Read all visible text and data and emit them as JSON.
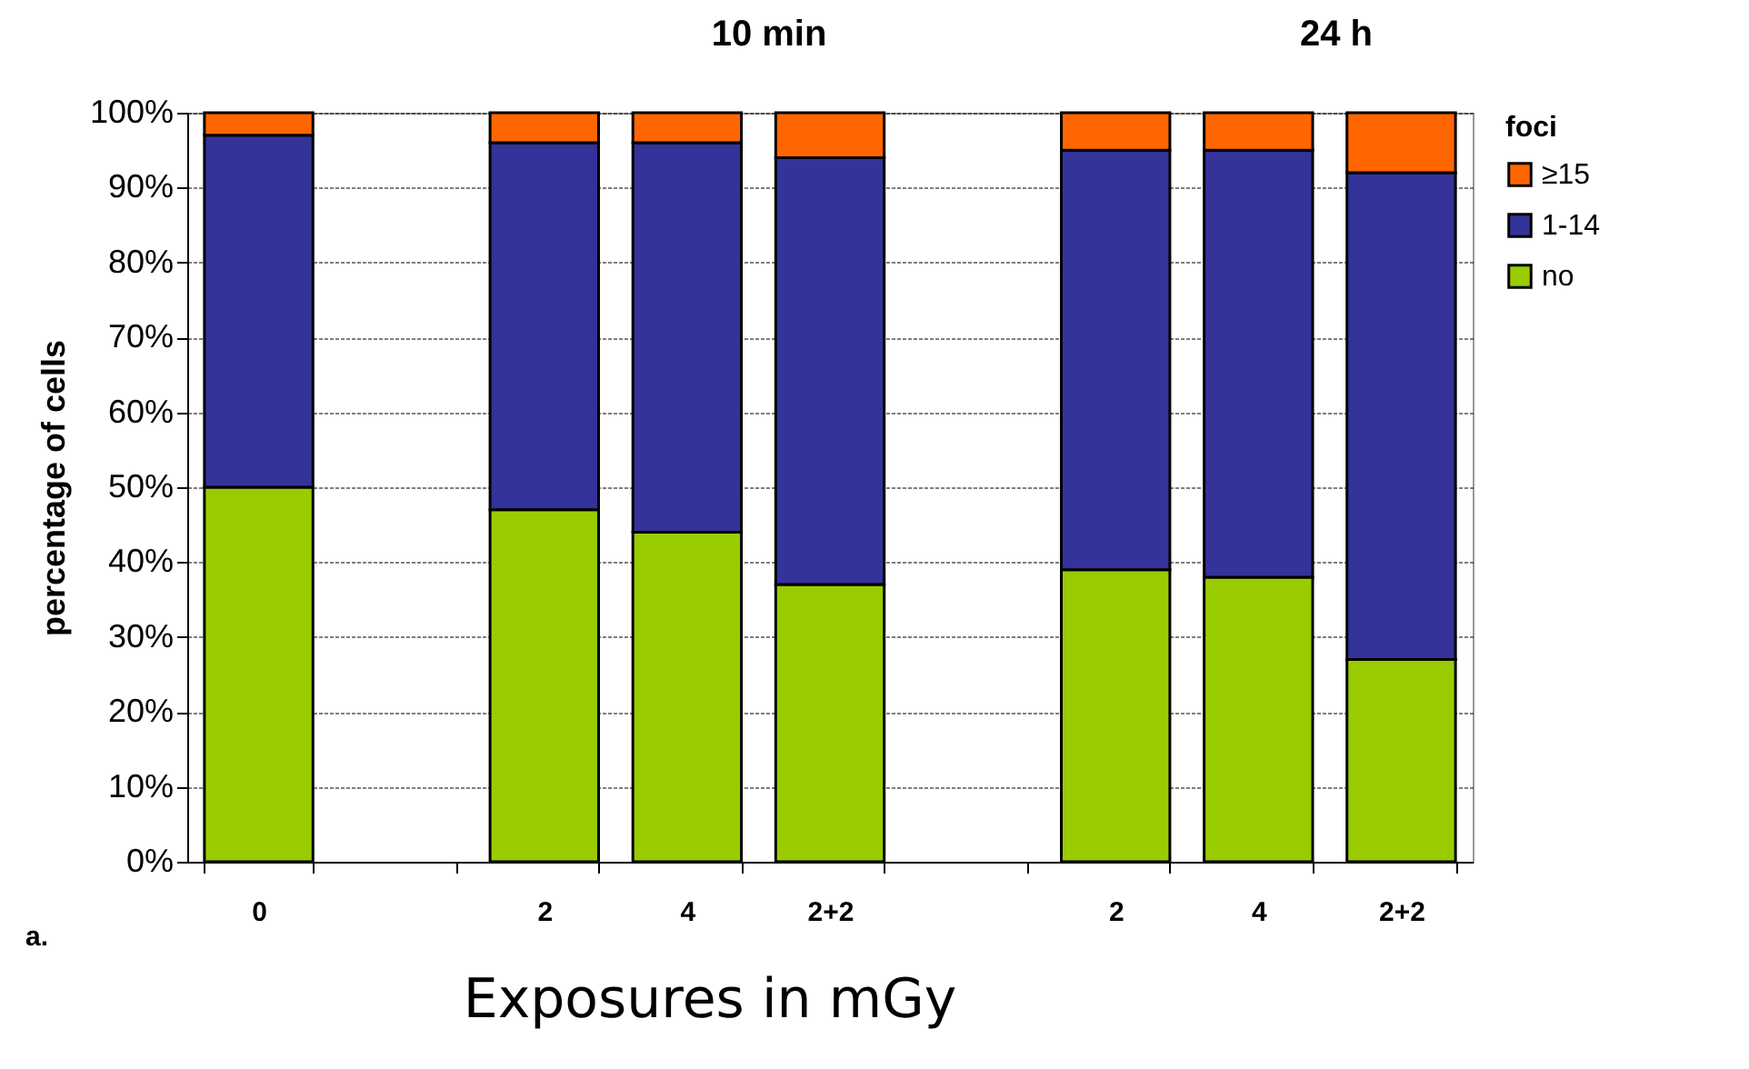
{
  "chart_data": {
    "type": "bar",
    "stacked": true,
    "xlabel": "Exposures in mGy",
    "ylabel": "percentage of cells",
    "legend_title": "foci",
    "annotations": [
      "10 min",
      "24 h",
      "a."
    ],
    "categories": [
      "0",
      null,
      "2",
      "4",
      "2+2",
      null,
      "2",
      "4",
      "2+2"
    ],
    "series": [
      {
        "name": "no",
        "color": "#99cc00",
        "values": [
          50,
          null,
          47,
          44,
          37,
          null,
          39,
          38,
          27
        ]
      },
      {
        "name": "1-14",
        "color": "#333399",
        "values": [
          47,
          null,
          49,
          52,
          57,
          null,
          56,
          57,
          65
        ]
      },
      {
        "name": "≥15",
        "color": "#ff6600",
        "values": [
          3,
          null,
          4,
          4,
          6,
          null,
          5,
          5,
          8
        ]
      }
    ],
    "ylim": [
      0,
      100
    ],
    "yticks": [
      {
        "value": 0,
        "label": "0%"
      },
      {
        "value": 10,
        "label": "10%"
      },
      {
        "value": 20,
        "label": "20%"
      },
      {
        "value": 30,
        "label": "30%"
      },
      {
        "value": 40,
        "label": "40%"
      },
      {
        "value": 50,
        "label": "50%"
      },
      {
        "value": 60,
        "label": "60%"
      },
      {
        "value": 70,
        "label": "70%"
      },
      {
        "value": 80,
        "label": "80%"
      },
      {
        "value": 90,
        "label": "90%"
      },
      {
        "value": 100,
        "label": "100%"
      }
    ],
    "grid": "y",
    "legend": "right"
  }
}
